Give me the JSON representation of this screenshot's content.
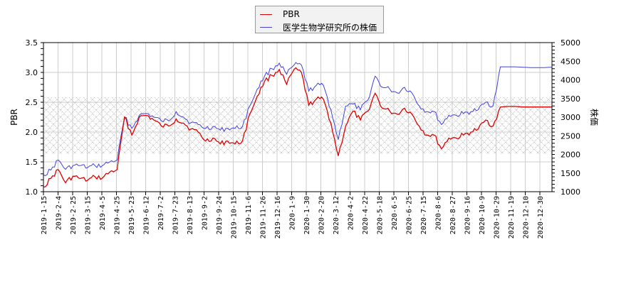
{
  "legend": {
    "items": [
      {
        "label": "PBR",
        "color": "#e00000"
      },
      {
        "label": "医学生物学研究所の株価",
        "color": "#4040e0"
      }
    ]
  },
  "axes": {
    "left_title": "PBR",
    "right_title": "株価",
    "left_ticks": [
      "1.0",
      "1.5",
      "2.0",
      "2.5",
      "3.0",
      "3.5"
    ],
    "right_ticks": [
      "1000",
      "1500",
      "2000",
      "2500",
      "3000",
      "3500",
      "4000",
      "4500",
      "5000"
    ]
  },
  "chart_data": {
    "type": "line",
    "title": "",
    "xlabel": "",
    "ylabel": "PBR",
    "y2label": "株価",
    "ylim": [
      1.0,
      3.5
    ],
    "y2lim": [
      1000,
      5000
    ],
    "grid": true,
    "legend_position": "top-center",
    "shaded_band_pbr": [
      1.64,
      2.58
    ],
    "x_tick_labels": [
      "2019-1-15",
      "2019-2-4",
      "2019-2-25",
      "2019-3-15",
      "2019-4-5",
      "2019-4-25",
      "2019-5-23",
      "2019-6-12",
      "2019-7-2",
      "2019-7-23",
      "2019-8-13",
      "2019-9-2",
      "2019-9-24",
      "2019-10-15",
      "2019-11-6",
      "2019-11-26",
      "2019-12-16",
      "2020-1-9",
      "2020-1-30",
      "2020-2-20",
      "2020-3-12",
      "2020-4-2",
      "2020-4-22",
      "2020-5-18",
      "2020-6-5",
      "2020-6-25",
      "2020-7-15",
      "2020-8-6",
      "2020-8-27",
      "2020-9-16",
      "2020-10-9",
      "2020-10-29",
      "2020-11-19",
      "2020-12-10",
      "2020-12-30"
    ],
    "x": [
      "2019-1-15",
      "2019-1-25",
      "2019-2-4",
      "2019-2-14",
      "2019-2-25",
      "2019-3-5",
      "2019-3-15",
      "2019-3-25",
      "2019-4-5",
      "2019-4-15",
      "2019-4-25",
      "2019-5-10",
      "2019-5-23",
      "2019-6-3",
      "2019-6-12",
      "2019-6-22",
      "2019-7-2",
      "2019-7-12",
      "2019-7-23",
      "2019-8-2",
      "2019-8-13",
      "2019-8-23",
      "2019-9-2",
      "2019-9-13",
      "2019-9-24",
      "2019-10-4",
      "2019-10-15",
      "2019-10-25",
      "2019-11-6",
      "2019-11-16",
      "2019-11-26",
      "2019-12-6",
      "2019-12-16",
      "2019-12-27",
      "2020-1-9",
      "2020-1-20",
      "2020-1-30",
      "2020-2-10",
      "2020-2-20",
      "2020-3-2",
      "2020-3-12",
      "2020-3-22",
      "2020-4-2",
      "2020-4-12",
      "2020-4-22",
      "2020-5-6",
      "2020-5-18",
      "2020-5-27",
      "2020-6-5",
      "2020-6-15",
      "2020-6-25",
      "2020-7-5",
      "2020-7-15",
      "2020-7-26",
      "2020-8-6",
      "2020-8-16",
      "2020-8-27",
      "2020-9-6",
      "2020-9-16",
      "2020-9-28",
      "2020-10-9",
      "2020-10-19",
      "2020-10-29",
      "2020-11-9",
      "2020-11-19",
      "2020-11-30",
      "2020-12-10",
      "2020-12-20",
      "2020-12-30",
      "2021-1-5"
    ],
    "series": [
      {
        "name": "PBR",
        "axis": "left",
        "color": "#e00000",
        "values": [
          1.08,
          1.22,
          1.37,
          1.15,
          1.26,
          1.22,
          1.19,
          1.25,
          1.23,
          1.33,
          1.37,
          2.25,
          1.95,
          2.25,
          2.28,
          2.2,
          2.1,
          2.1,
          2.22,
          2.15,
          2.05,
          2.0,
          1.85,
          1.9,
          1.8,
          1.85,
          1.8,
          1.85,
          2.3,
          2.6,
          2.85,
          2.95,
          3.05,
          2.8,
          3.05,
          3.0,
          2.45,
          2.55,
          2.55,
          2.15,
          1.6,
          2.1,
          2.35,
          2.2,
          2.35,
          2.65,
          2.4,
          2.35,
          2.3,
          2.4,
          2.3,
          2.1,
          1.95,
          1.95,
          1.72,
          1.9,
          1.9,
          1.95,
          2.0,
          2.05,
          2.2,
          2.1,
          2.42,
          2.43,
          2.43,
          2.42,
          2.42,
          2.42,
          2.42,
          2.42
        ]
      },
      {
        "name": "医学生物学研究所の株価",
        "axis": "right",
        "color": "#4040e0",
        "values": [
          1450,
          1580,
          1850,
          1600,
          1700,
          1700,
          1650,
          1700,
          1700,
          1800,
          1850,
          3000,
          2700,
          3050,
          3100,
          3000,
          2900,
          2900,
          3150,
          3000,
          2850,
          2800,
          2700,
          2750,
          2650,
          2700,
          2700,
          2750,
          3300,
          3750,
          4100,
          4300,
          4450,
          4150,
          4400,
          4400,
          3700,
          3850,
          3850,
          3200,
          2400,
          3300,
          3350,
          3200,
          3450,
          4100,
          3800,
          3750,
          3650,
          3800,
          3650,
          3300,
          3150,
          3150,
          2800,
          3050,
          3050,
          3100,
          3150,
          3200,
          3400,
          3300,
          4350,
          4350,
          4350,
          4340,
          4330,
          4330,
          4330,
          4340
        ]
      }
    ]
  }
}
